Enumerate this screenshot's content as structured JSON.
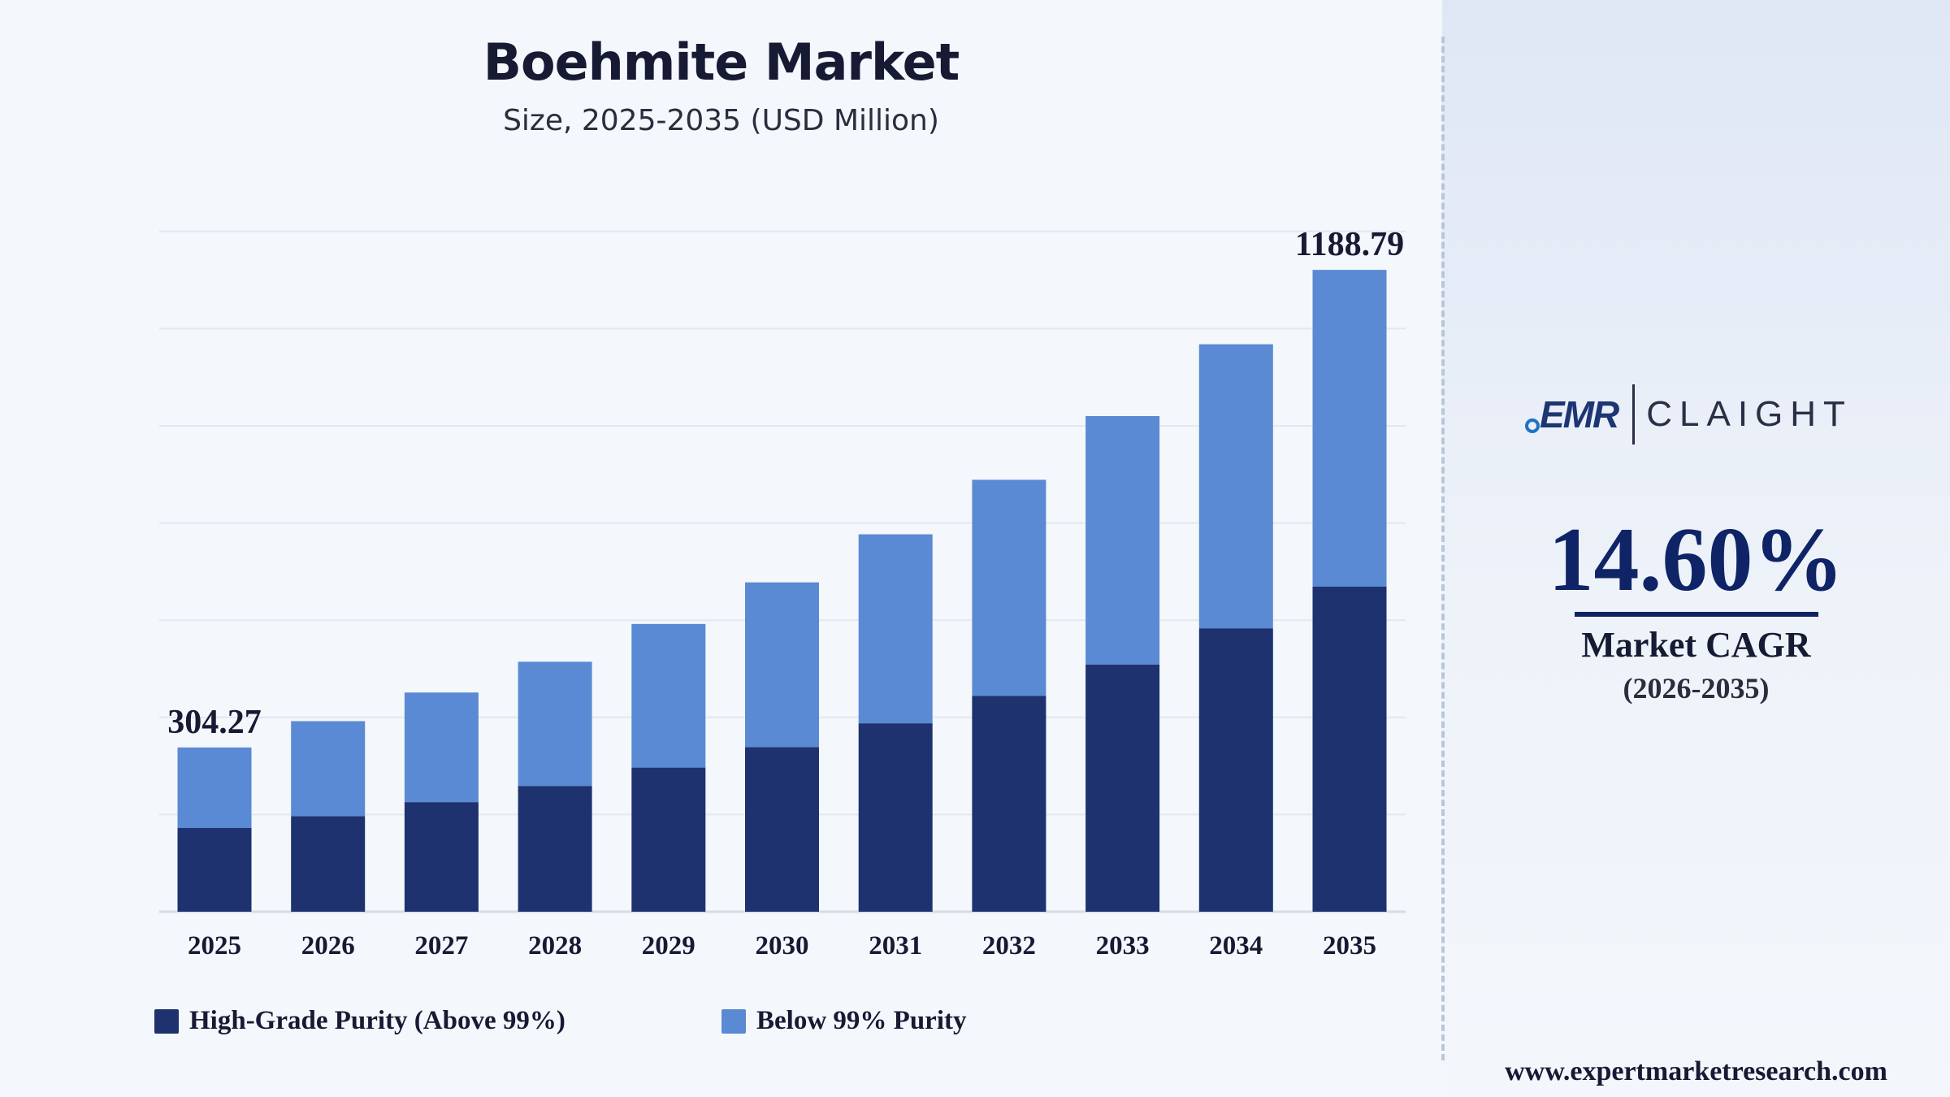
{
  "chart_data": {
    "type": "bar",
    "stacked": true,
    "title": "Boehmite Market",
    "subtitle": "Size, 2025-2035 (USD Million)",
    "categories": [
      "2025",
      "2026",
      "2027",
      "2028",
      "2029",
      "2030",
      "2031",
      "2032",
      "2033",
      "2034",
      "2035"
    ],
    "series": [
      {
        "name": "High-Grade Purity (Above 99%)",
        "color": "#1d326e",
        "values": [
          155,
          177,
          203,
          233,
          267,
          305,
          349,
          400,
          458,
          525,
          602
        ]
      },
      {
        "name": "Below 99% Purity",
        "color": "#5a8ad3",
        "values": [
          149.27,
          176,
          203,
          230,
          266,
          305,
          350,
          400,
          460,
          526,
          586.79
        ]
      }
    ],
    "data_labels": [
      {
        "category": "2025",
        "text": "304.27"
      },
      {
        "category": "2035",
        "text": "1188.79"
      }
    ],
    "ylim": [
      0,
      1350
    ],
    "grid": true,
    "legend_position": "bottom"
  },
  "brand": {
    "logo_left": "EMR",
    "logo_right": "CLAIGHT"
  },
  "cagr": {
    "value": "14.60%",
    "label": "Market CAGR",
    "period": "(2026-2035)"
  },
  "footer": {
    "website": "www.expertmarketresearch.com"
  }
}
